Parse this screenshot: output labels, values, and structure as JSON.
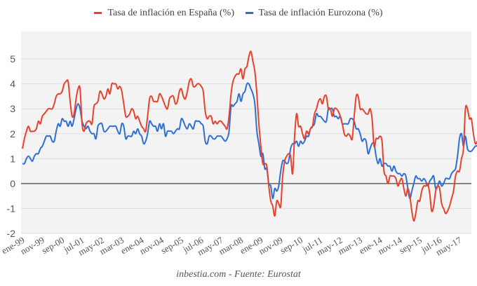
{
  "chart_data": {
    "type": "line",
    "title": "",
    "xlabel": "",
    "ylabel": "",
    "source": "inbestia.com - Fuente: Eurostat",
    "ylim": [
      -2,
      6
    ],
    "yticks": [
      -2,
      -1,
      0,
      1,
      2,
      3,
      4,
      5
    ],
    "start": "ene-99",
    "frequency": "monthly",
    "xtick_labels": [
      "ene-99",
      "nov-99",
      "sep-00",
      "jul-01",
      "may-02",
      "mar-03",
      "ene-04",
      "nov-04",
      "sep-05",
      "jul-06",
      "may-07",
      "mar-08",
      "ene-09",
      "nov-09",
      "sep-10",
      "jul-11",
      "may-12",
      "mar-13",
      "ene-14",
      "nov-14",
      "sep-15",
      "jul-16",
      "may-17"
    ],
    "xtick_every_months": 10,
    "grid": true,
    "legend_position": "top-center",
    "series": [
      {
        "name": "Tasa de inflación en España (%)",
        "color": "#e8412c",
        "values": [
          1.4,
          1.8,
          2.1,
          2.3,
          2.1,
          2.1,
          2.1,
          2.2,
          2.5,
          2.4,
          2.7,
          2.8,
          2.9,
          3.0,
          3.0,
          3.0,
          3.2,
          3.5,
          3.6,
          3.6,
          3.7,
          4.0,
          4.1,
          4.1,
          3.3,
          2.7,
          2.8,
          3.4,
          3.8,
          3.8,
          2.4,
          2.1,
          2.4,
          2.5,
          2.5,
          2.4,
          3.1,
          3.2,
          3.3,
          3.7,
          3.6,
          3.4,
          3.5,
          3.8,
          3.6,
          4.0,
          4.0,
          4.0,
          3.8,
          3.9,
          3.7,
          3.2,
          2.7,
          2.7,
          2.8,
          3.0,
          2.9,
          2.6,
          2.7,
          2.5,
          2.3,
          2.2,
          2.1,
          2.7,
          3.4,
          3.5,
          3.3,
          3.3,
          3.3,
          3.6,
          3.5,
          3.3,
          3.1,
          3.0,
          3.4,
          3.5,
          3.5,
          3.2,
          3.3,
          3.7,
          3.8,
          3.5,
          3.4,
          3.7,
          4.1,
          4.2,
          3.9,
          3.9,
          4.0,
          4.0,
          3.9,
          3.7,
          2.9,
          2.6,
          2.7,
          2.7,
          2.4,
          2.5,
          2.4,
          2.5,
          2.5,
          2.4,
          2.3,
          2.2,
          2.7,
          3.6,
          4.1,
          4.3,
          4.4,
          4.4,
          4.6,
          4.2,
          4.6,
          4.7,
          5.1,
          5.3,
          4.9,
          4.5,
          3.6,
          2.4,
          1.5,
          0.8,
          0.8,
          0.7,
          -0.1,
          -0.7,
          -0.9,
          -1.3,
          -0.7,
          -0.8,
          -0.9,
          0.3,
          0.9,
          1.1,
          1.2,
          1.1,
          0.4,
          1.9,
          2.8,
          2.3,
          2.3,
          2.0,
          1.8,
          2.1,
          2.0,
          2.2,
          2.3,
          2.8,
          3.0,
          3.3,
          3.4,
          3.2,
          3.5,
          3.5,
          3.0,
          3.0,
          2.7,
          3.0,
          3.0,
          2.9,
          2.7,
          2.4,
          2.0,
          1.9,
          2.0,
          1.9,
          1.8,
          2.7,
          3.5,
          3.5,
          3.0,
          3.0,
          2.9,
          2.8,
          2.8,
          3.0,
          2.6,
          1.5,
          1.8,
          1.8,
          1.9,
          1.7,
          0.5,
          0.3,
          0.0,
          0.3,
          0.3,
          0.3,
          0.2,
          -0.1,
          0.1,
          0.2,
          -0.2,
          -0.5,
          -0.2,
          -0.5,
          -1.1,
          -1.5,
          -1.2,
          -0.7,
          -0.7,
          -0.3,
          -0.1,
          -0.1,
          0.0,
          -0.4,
          -1.1,
          -0.9,
          -0.3,
          -0.1,
          -0.2,
          -0.8,
          -1.0,
          -1.2,
          -1.1,
          -0.9,
          -0.6,
          -0.3,
          0.3,
          0.5,
          0.5,
          1.0,
          1.4,
          3.0,
          3.0,
          2.6,
          2.6,
          2.0,
          1.6,
          1.7,
          1.7,
          1.8,
          1.8,
          1.7,
          1.7
        ]
      },
      {
        "name": "Tasa de inflación Eurozona (%)",
        "color": "#2e6fd6",
        "values": [
          0.8,
          0.8,
          1.0,
          1.1,
          1.0,
          0.9,
          1.1,
          1.2,
          1.2,
          1.4,
          1.5,
          1.7,
          1.9,
          1.9,
          1.9,
          1.7,
          1.7,
          2.1,
          2.4,
          2.3,
          2.6,
          2.5,
          2.5,
          2.3,
          2.5,
          2.3,
          2.6,
          3.0,
          3.2,
          3.0,
          2.5,
          2.3,
          2.2,
          2.3,
          2.1,
          2.0,
          2.0,
          1.8,
          2.3,
          2.4,
          2.4,
          2.1,
          2.1,
          2.2,
          2.3,
          2.3,
          2.3,
          2.3,
          2.1,
          2.0,
          2.4,
          2.3,
          1.8,
          1.9,
          1.9,
          1.9,
          2.1,
          2.0,
          2.2,
          2.0,
          1.9,
          1.6,
          1.7,
          2.0,
          2.5,
          2.4,
          2.3,
          2.3,
          2.1,
          2.4,
          2.2,
          2.4,
          1.9,
          2.1,
          2.1,
          2.1,
          2.0,
          2.1,
          2.2,
          2.2,
          2.6,
          2.5,
          2.3,
          2.2,
          2.4,
          2.3,
          2.2,
          2.5,
          2.5,
          2.5,
          2.4,
          2.3,
          1.7,
          1.6,
          1.9,
          1.9,
          1.8,
          1.8,
          1.9,
          1.9,
          1.9,
          1.8,
          1.7,
          1.8,
          2.1,
          3.1,
          3.1,
          3.2,
          3.3,
          3.6,
          3.3,
          3.6,
          3.7,
          4.0,
          4.0,
          3.8,
          3.6,
          3.2,
          2.1,
          1.6,
          1.1,
          1.2,
          0.6,
          0.6,
          0.0,
          -0.1,
          -0.6,
          -0.2,
          -0.3,
          -0.1,
          0.5,
          0.9,
          0.9,
          0.8,
          0.9,
          1.4,
          1.6,
          1.6,
          1.7,
          1.5,
          1.7,
          1.6,
          1.7,
          1.9,
          1.9,
          2.2,
          2.3,
          2.4,
          2.8,
          2.7,
          2.7,
          2.6,
          2.5,
          2.5,
          3.0,
          3.0,
          3.0,
          2.7,
          2.7,
          2.6,
          2.7,
          2.4,
          2.4,
          2.4,
          2.4,
          2.6,
          2.6,
          2.5,
          2.2,
          2.2,
          2.0,
          1.7,
          1.8,
          1.7,
          1.2,
          1.4,
          1.6,
          1.6,
          1.1,
          0.8,
          1.0,
          0.7,
          0.8,
          0.8,
          0.7,
          0.7,
          0.5,
          0.7,
          0.5,
          0.4,
          0.4,
          0.3,
          0.4,
          0.3,
          -0.2,
          -0.6,
          -0.3,
          0.0,
          0.3,
          0.2,
          0.2,
          0.1,
          0.2,
          0.1,
          -0.1,
          0.1,
          0.2,
          0.3,
          -0.2,
          -0.1,
          0.1,
          -0.1,
          0.0,
          0.2,
          0.2,
          0.2,
          0.4,
          0.5,
          0.6,
          1.1,
          1.8,
          2.0,
          1.5,
          1.9,
          1.4,
          1.3,
          1.3,
          1.4,
          1.5,
          1.5,
          1.4,
          1.5
        ]
      }
    ]
  }
}
